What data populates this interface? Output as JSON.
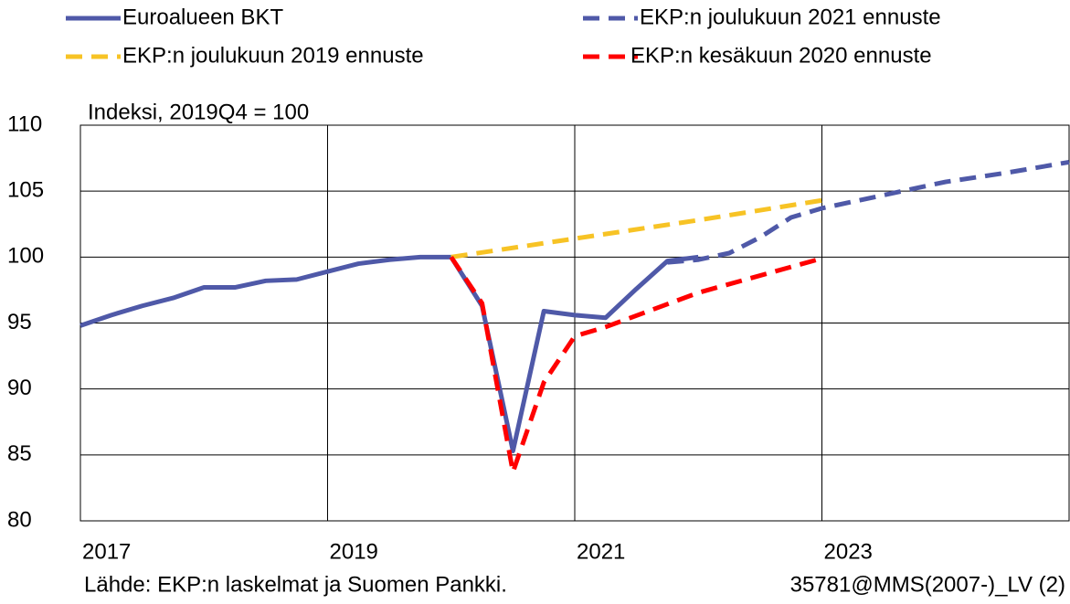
{
  "chart_data": {
    "type": "line",
    "annotation": "Indeksi, 2019Q4 = 100",
    "source": "Lähde: EKP:n laskelmat ja Suomen Pankki.",
    "code": "35781@MMS(2007-)_LV (2)",
    "xlim": [
      2017,
      2025
    ],
    "xticks": [
      2017,
      2019,
      2021,
      2023
    ],
    "ylim": [
      80,
      110
    ],
    "yticks": [
      80,
      85,
      90,
      95,
      100,
      105,
      110
    ],
    "grid": true,
    "series": [
      {
        "name": "Euroalueen BKT",
        "color": "#4f59a8",
        "dash": false,
        "x": [
          2017.0,
          2017.25,
          2017.5,
          2017.75,
          2018.0,
          2018.25,
          2018.5,
          2018.75,
          2019.0,
          2019.25,
          2019.5,
          2019.75,
          2020.0,
          2020.25,
          2020.5,
          2020.75,
          2021.0,
          2021.25,
          2021.5,
          2021.75,
          2022.0
        ],
        "values": [
          94.8,
          95.6,
          96.3,
          96.9,
          97.7,
          97.7,
          98.2,
          98.3,
          98.9,
          99.5,
          99.8,
          100.0,
          100.0,
          96.3,
          85.3,
          95.9,
          95.6,
          95.4,
          97.6,
          99.7,
          100.0
        ]
      },
      {
        "name": "EKP:n joulukuun 2019 ennuste",
        "color": "#f7c325",
        "dash": true,
        "x": [
          2020.0,
          2021.0,
          2022.0,
          2023.0
        ],
        "values": [
          100.0,
          101.4,
          102.8,
          104.3
        ]
      },
      {
        "name": "EKP:n joulukuun 2021 ennuste",
        "color": "#4f59a8",
        "dash": true,
        "x": [
          2021.75,
          2022.0,
          2022.25,
          2022.5,
          2022.75,
          2023.0,
          2023.5,
          2024.0,
          2024.5,
          2025.0
        ],
        "values": [
          99.6,
          99.8,
          100.3,
          101.5,
          103.0,
          103.7,
          104.7,
          105.7,
          106.4,
          107.2
        ]
      },
      {
        "name": "EKP:n kesäkuun 2020 ennuste",
        "color": "#ff0000",
        "dash": true,
        "x": [
          2020.0,
          2020.25,
          2020.5,
          2020.75,
          2021.0,
          2021.25,
          2022.0,
          2023.0
        ],
        "values": [
          100.0,
          96.5,
          83.7,
          90.5,
          94.0,
          94.7,
          97.3,
          99.9
        ]
      }
    ]
  }
}
